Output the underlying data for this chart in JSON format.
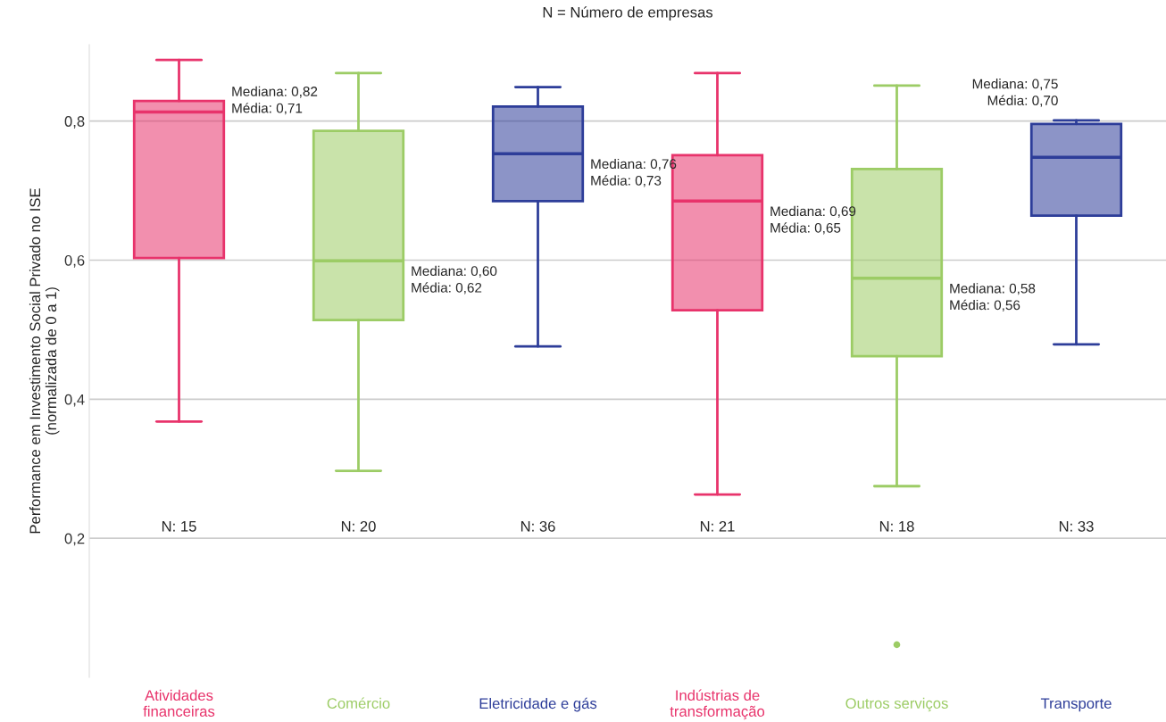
{
  "chart_data": {
    "type": "box",
    "title": "N = Número de empresas",
    "ylabel": "Performance em Investimento Social Privado no ISE\n(normalizada de 0 a 1)",
    "categories": [
      "Atividades\nfinanceiras",
      "Comércio",
      "Eletricidade e gás",
      "Indústrias de\ntransformação",
      "Outros serviços",
      "Transporte"
    ],
    "colors": [
      "#e8336b",
      "#9ccc65",
      "#2d3d99",
      "#e8336b",
      "#9ccc65",
      "#2d3d99"
    ],
    "boxes": [
      {
        "low": 0.368,
        "q1": 0.603,
        "median": 0.813,
        "q3": 0.829,
        "high": 0.888
      },
      {
        "low": 0.297,
        "q1": 0.514,
        "median": 0.599,
        "q3": 0.786,
        "high": 0.869
      },
      {
        "low": 0.476,
        "q1": 0.685,
        "median": 0.753,
        "q3": 0.821,
        "high": 0.849
      },
      {
        "low": 0.263,
        "q1": 0.528,
        "median": 0.685,
        "q3": 0.751,
        "high": 0.869
      },
      {
        "low": 0.275,
        "q1": 0.462,
        "median": 0.574,
        "q3": 0.731,
        "high": 0.851,
        "outliers": [
          0.047
        ]
      },
      {
        "low": 0.479,
        "q1": 0.664,
        "median": 0.748,
        "q3": 0.796,
        "high": 0.801
      }
    ],
    "ylim": [
      0,
      0.91
    ],
    "yticks": [
      {
        "value": 0.2,
        "label": "0,2"
      },
      {
        "value": 0.4,
        "label": "0,4"
      },
      {
        "value": 0.6,
        "label": "0,6"
      },
      {
        "value": 0.8,
        "label": "0,8"
      }
    ],
    "grid": "y",
    "annotations": [
      "Mediana: 0,82\nMédia: 0,71",
      "Mediana: 0,60\nMédia: 0,62",
      "Mediana: 0,76\nMédia: 0,73",
      "Mediana: 0,69\nMédia: 0,65",
      "Mediana: 0,58\nMédia: 0,56",
      "Mediana: 0,75\nMédia: 0,70",
      "N: 15",
      "N: 20",
      "N: 36",
      "N: 21",
      "N: 18",
      "N: 33"
    ]
  }
}
